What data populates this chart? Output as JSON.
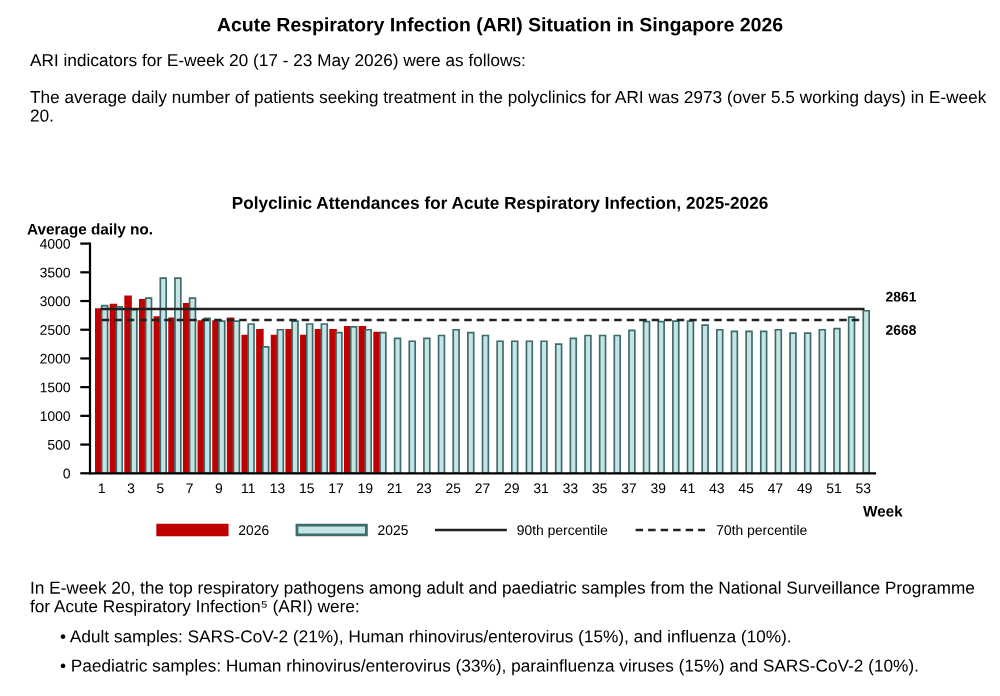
{
  "chart_data": {
    "type": "bar",
    "title": "Acute Respiratory Infection (ARI) Situation in Singapore 2026",
    "subtitle": "Polyclinic Attendances for Acute Respiratory Infection, 2025-2026",
    "annotations": [
      "ARI indicators for E-week 20 (17 - 23 May 2026) were as follows:",
      "The average daily number of patients seeking treatment in the polyclinics for ARI was 2973 (over 5.5 working days) in E-week 20.",
      "In E-week 20, the top respiratory pathogens among adult and paediatric samples from the National Surveillance Programme for Acute Respiratory Infection⁵ (ARI) were:",
      "• Adult samples: SARS-CoV-2 (21%), Human rhinovirus/enterovirus (15%), and influenza (10%).",
      "• Paediatric samples: Human rhinovirus/enterovirus (33%), parainfluenza viruses (15%) and SARS-CoV-2 (10%)."
    ],
    "ylabel": "Average daily no.",
    "xlabel": "Week",
    "categories": [
      "1",
      null,
      "3",
      null,
      "5",
      null,
      "7",
      null,
      "9",
      null,
      "11",
      null,
      "13",
      null,
      "15",
      null,
      "17",
      null,
      "19",
      null,
      "21",
      null,
      "23",
      null,
      "25",
      null,
      "27",
      null,
      "29",
      null,
      "31",
      null,
      "33",
      null,
      "35",
      null,
      "37",
      null,
      "39",
      null,
      "41",
      null,
      "43",
      null,
      "45",
      null,
      "47",
      null,
      "49",
      null,
      "51",
      null,
      "53"
    ],
    "ylim": [
      0,
      4000
    ],
    "yticks": [
      0,
      500,
      1000,
      1500,
      2000,
      2500,
      3000,
      3500,
      4000
    ],
    "grid": false,
    "legend": "bottom",
    "series": [
      {
        "name": "2026",
        "color": "#c00000",
        "values": [
          2860,
          2940,
          3080,
          3020,
          2720,
          2700,
          2950,
          2650,
          2650,
          2700,
          2400,
          2500,
          2400,
          2500,
          2400,
          2500,
          2500,
          2550,
          2550,
          2450,
          null,
          null,
          null,
          null,
          null,
          null,
          null,
          null,
          null,
          null,
          null,
          null,
          null,
          null,
          null,
          null,
          null,
          null,
          null,
          null,
          null,
          null,
          null,
          null,
          null,
          null,
          null,
          null,
          null,
          null,
          null,
          null,
          null
        ]
      },
      {
        "name": "2025",
        "color": "#c6e4e4",
        "values": [
          2920,
          2900,
          2850,
          3050,
          3400,
          3400,
          3050,
          2700,
          2650,
          2650,
          2600,
          2200,
          2500,
          2650,
          2600,
          2600,
          2450,
          2550,
          2500,
          2450,
          2350,
          2300,
          2350,
          2400,
          2500,
          2450,
          2400,
          2300,
          2300,
          2300,
          2300,
          2250,
          2350,
          2400,
          2400,
          2400,
          2490,
          2640,
          2640,
          2650,
          2650,
          2580,
          2500,
          2470,
          2470,
          2470,
          2500,
          2440,
          2440,
          2500,
          2520,
          2720,
          2830
        ]
      },
      {
        "name": "90th percentile",
        "type": "line",
        "line_style": "solid",
        "color": "#222222",
        "values": [
          2861,
          2861,
          2861,
          2861,
          2861,
          2861,
          2861,
          2861,
          2861,
          2861,
          2861,
          2861,
          2861,
          2861,
          2861,
          2861,
          2861,
          2861,
          2861,
          2861,
          2861,
          2861,
          2861,
          2861,
          2861,
          2861,
          2861,
          2861,
          2861,
          2861,
          2861,
          2861,
          2861,
          2861,
          2861,
          2861,
          2861,
          2861,
          2861,
          2861,
          2861,
          2861,
          2861,
          2861,
          2861,
          2861,
          2861,
          2861,
          2861,
          2861,
          2861,
          2861,
          2861
        ],
        "value_labels": [
          null,
          null,
          null,
          null,
          null,
          null,
          null,
          null,
          null,
          null,
          null,
          null,
          null,
          null,
          null,
          null,
          null,
          null,
          null,
          null,
          null,
          null,
          null,
          null,
          null,
          null,
          null,
          null,
          null,
          null,
          null,
          null,
          null,
          null,
          null,
          null,
          null,
          null,
          null,
          null,
          null,
          null,
          null,
          null,
          null,
          null,
          null,
          null,
          null,
          null,
          null,
          null,
          "2861"
        ]
      },
      {
        "name": "70th percentile",
        "type": "line",
        "line_style": "dashed",
        "color": "#222222",
        "values": [
          2668,
          2668,
          2668,
          2668,
          2668,
          2668,
          2668,
          2668,
          2668,
          2668,
          2668,
          2668,
          2668,
          2668,
          2668,
          2668,
          2668,
          2668,
          2668,
          2668,
          2668,
          2668,
          2668,
          2668,
          2668,
          2668,
          2668,
          2668,
          2668,
          2668,
          2668,
          2668,
          2668,
          2668,
          2668,
          2668,
          2668,
          2668,
          2668,
          2668,
          2668,
          2668,
          2668,
          2668,
          2668,
          2668,
          2668,
          2668,
          2668,
          2668,
          2668,
          2668,
          2668
        ],
        "value_labels": [
          null,
          null,
          null,
          null,
          null,
          null,
          null,
          null,
          null,
          null,
          null,
          null,
          null,
          null,
          null,
          null,
          null,
          null,
          null,
          null,
          null,
          null,
          null,
          null,
          null,
          null,
          null,
          null,
          null,
          null,
          null,
          null,
          null,
          null,
          null,
          null,
          null,
          null,
          null,
          null,
          null,
          null,
          null,
          null,
          null,
          null,
          null,
          null,
          null,
          null,
          null,
          null,
          "2668"
        ]
      }
    ]
  }
}
